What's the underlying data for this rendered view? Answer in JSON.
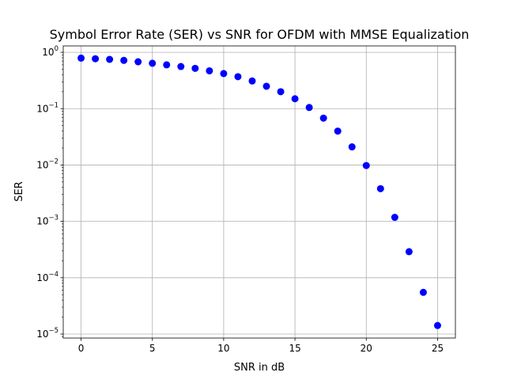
{
  "chart_data": {
    "type": "scatter",
    "title": "Symbol Error Rate (SER) vs SNR for OFDM with MMSE Equalization",
    "xlabel": "SNR in dB",
    "ylabel": "SER",
    "xlim": [
      -1.25,
      26.25
    ],
    "ylim": [
      8.5e-06,
      1.3
    ],
    "yscale": "log",
    "grid": true,
    "marker_color": "#0000ff",
    "x_ticks": [
      0,
      5,
      10,
      15,
      20,
      25
    ],
    "y_ticks": [
      {
        "value": 1,
        "base": "10",
        "exp": "0"
      },
      {
        "value": 0.1,
        "base": "10",
        "exp": "−1"
      },
      {
        "value": 0.01,
        "base": "10",
        "exp": "−2"
      },
      {
        "value": 0.001,
        "base": "10",
        "exp": "−3"
      },
      {
        "value": 0.0001,
        "base": "10",
        "exp": "−4"
      },
      {
        "value": 1e-05,
        "base": "10",
        "exp": "−5"
      }
    ],
    "series": [
      {
        "x": [
          0,
          1,
          2,
          3,
          4,
          5,
          6,
          7,
          8,
          9,
          10,
          11,
          12,
          13,
          14,
          15,
          16,
          17,
          18,
          19,
          20,
          21,
          22,
          23,
          24,
          25
        ],
        "y": [
          0.79,
          0.77,
          0.75,
          0.72,
          0.68,
          0.64,
          0.6,
          0.56,
          0.52,
          0.47,
          0.42,
          0.37,
          0.31,
          0.25,
          0.2,
          0.15,
          0.105,
          0.068,
          0.04,
          0.021,
          0.0098,
          0.0038,
          0.00118,
          0.00029,
          5.5e-05,
          1.42e-05
        ]
      }
    ]
  }
}
